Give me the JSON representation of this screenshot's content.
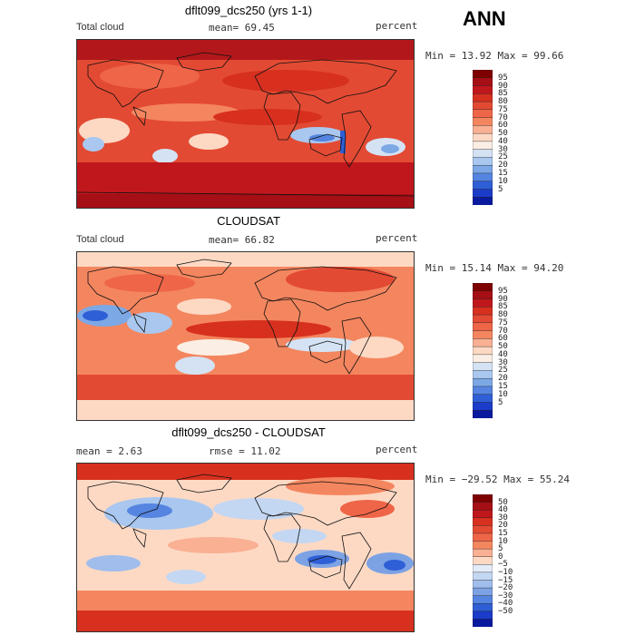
{
  "season": "ANN",
  "panels": [
    {
      "title": "dflt099_dcs250 (yrs 1-1)",
      "left_label": "Total cloud",
      "mid_label": "mean=  69.45",
      "right_label": "percent",
      "minmax": "Min =  13.92 Max =  99.66",
      "colorbar": {
        "labels": [
          "95",
          "90",
          "85",
          "80",
          "75",
          "70",
          "60",
          "50",
          "40",
          "30",
          "25",
          "20",
          "15",
          "10",
          "5"
        ],
        "colors": [
          "#7f0000",
          "#a50f15",
          "#c0171c",
          "#d7301f",
          "#e34a33",
          "#ef6548",
          "#f4865f",
          "#f9b093",
          "#fdd9c4",
          "#fbefe5",
          "#d4e2f4",
          "#a9c7ef",
          "#7da8e6",
          "#5585e0",
          "#2f5fd6",
          "#1b3cc8",
          "#0a1a9e"
        ]
      }
    },
    {
      "title": "CLOUDSAT",
      "left_label": "Total cloud",
      "mid_label": "mean=  66.82",
      "right_label": "percent",
      "minmax": "Min =  15.14 Max =  94.20",
      "colorbar": {
        "labels": [
          "95",
          "90",
          "85",
          "80",
          "75",
          "70",
          "60",
          "50",
          "40",
          "30",
          "25",
          "20",
          "15",
          "10",
          "5"
        ],
        "colors": [
          "#7f0000",
          "#a50f15",
          "#c0171c",
          "#d7301f",
          "#e34a33",
          "#ef6548",
          "#f4865f",
          "#f9b093",
          "#fdd9c4",
          "#fbefe5",
          "#d4e2f4",
          "#a9c7ef",
          "#7da8e6",
          "#5585e0",
          "#2f5fd6",
          "#1b3cc8",
          "#0a1a9e"
        ]
      }
    },
    {
      "title": "dflt099_dcs250 - CLOUDSAT",
      "left_label": "mean =    2.63",
      "mid_label": "rmse =  11.02",
      "right_label": "percent",
      "minmax": "Min = −29.52 Max =  55.24",
      "colorbar": {
        "labels": [
          "50",
          "40",
          "30",
          "20",
          "15",
          "10",
          "5",
          "0",
          "−5",
          "−10",
          "−15",
          "−20",
          "−30",
          "−40",
          "−50"
        ],
        "colors": [
          "#7f0000",
          "#a50f15",
          "#c0171c",
          "#d7301f",
          "#e34a33",
          "#ef6548",
          "#f4865f",
          "#f9b093",
          "#fdd9c4",
          "#e3ecf8",
          "#c4d7f2",
          "#a0bdec",
          "#7ca2e4",
          "#5585e0",
          "#2f5fd6",
          "#1b3cc8",
          "#0a1a9e"
        ]
      }
    }
  ]
}
